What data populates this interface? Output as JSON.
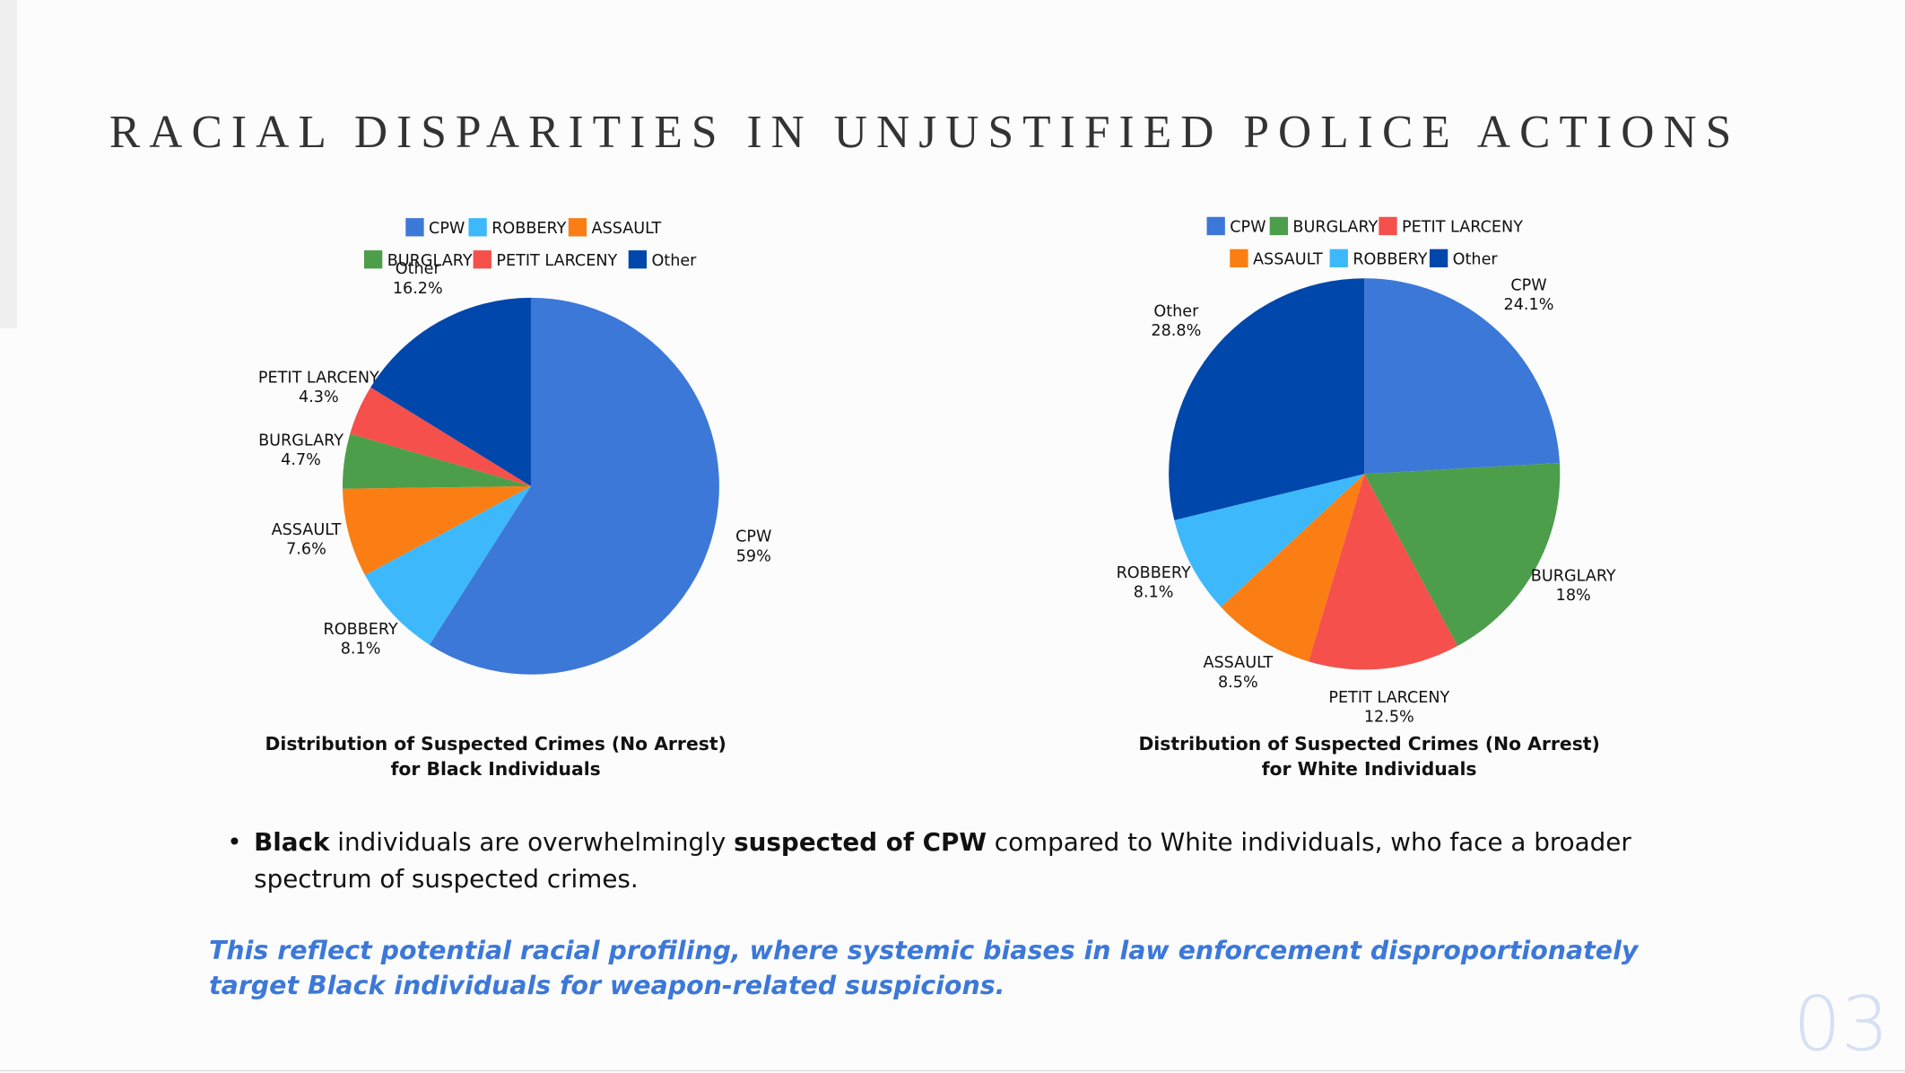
{
  "slide": {
    "title": "RACIAL DISPARITIES IN UNJUSTIFIED POLICE ACTIONS",
    "bullet": [
      {
        "text": "Black",
        "bold": true
      },
      {
        "text": " individuals are overwhelmingly ",
        "bold": false
      },
      {
        "text": "suspected of CPW",
        "bold": true
      },
      {
        "text": " compared to White individuals, who face a broader spectrum of suspected crimes.",
        "bold": false
      }
    ],
    "note": "This reflect potential racial profiling, where systemic biases in law enforcement disproportionately target Black individuals for weapon-related suspicions.",
    "page_number": "03"
  },
  "chart_data": [
    {
      "type": "pie",
      "title": "Distribution of Suspected Crimes (No Arrest) for Black Individuals",
      "categories": [
        "CPW",
        "ROBBERY",
        "ASSAULT",
        "BURGLARY",
        "PETIT LARCENY",
        "Other"
      ],
      "values": [
        59,
        8.1,
        7.6,
        4.7,
        4.3,
        16.2
      ],
      "value_labels": [
        "59%",
        "8.1%",
        "7.6%",
        "4.7%",
        "4.3%",
        "16.2%"
      ],
      "colors": [
        "#3c78d8",
        "#3db9fb",
        "#fa7e13",
        "#4c9e4a",
        "#f5504b",
        "#0047ab"
      ]
    },
    {
      "type": "pie",
      "title": "Distribution of Suspected Crimes (No Arrest) for White Individuals",
      "categories": [
        "CPW",
        "BURGLARY",
        "PETIT LARCENY",
        "ASSAULT",
        "ROBBERY",
        "Other"
      ],
      "values": [
        24.1,
        18,
        12.5,
        8.5,
        8.1,
        28.8
      ],
      "value_labels": [
        "24.1%",
        "18%",
        "12.5%",
        "8.5%",
        "8.1%",
        "28.8%"
      ],
      "colors": [
        "#3c78d8",
        "#4c9e4a",
        "#f5504b",
        "#fa7e13",
        "#3db9fb",
        "#0047ab"
      ]
    }
  ]
}
